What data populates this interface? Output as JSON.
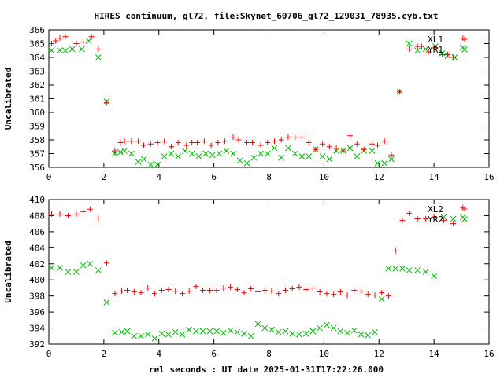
{
  "title": "HIRES continuum, gl72, file:Skynet_60706_gl72_129031_78935.cyb.txt",
  "xlabel": "rel seconds : UT date 2025-01-31T17:22:26.000",
  "colors": {
    "red": "#ff0000",
    "green": "#00bb00",
    "axes": "#000000"
  },
  "chart_data": [
    {
      "type": "scatter",
      "ylabel": "Uncalibrated",
      "xlim": [
        0,
        16
      ],
      "ylim": [
        356,
        366
      ],
      "x_ticks": [
        0,
        2,
        4,
        6,
        8,
        10,
        12,
        14,
        16
      ],
      "y_ticks": [
        356,
        357,
        358,
        359,
        360,
        361,
        362,
        363,
        364,
        365,
        366
      ],
      "x_tick_labels": [
        "0",
        "2",
        "4",
        "6",
        "8",
        "10",
        "12",
        "14",
        "16"
      ],
      "y_tick_labels": [
        "356",
        "357",
        "358",
        "359",
        "360",
        "361",
        "362",
        "363",
        "364",
        "365",
        "366"
      ],
      "grid": false,
      "legend": "top-right",
      "series": [
        {
          "name": "XL1",
          "marker": "plus",
          "color": "#ff0000",
          "x": [
            0.1,
            0.25,
            0.4,
            0.6,
            1.0,
            1.25,
            1.55,
            1.8,
            2.1,
            2.4,
            2.6,
            2.75,
            3.0,
            3.25,
            3.45,
            3.7,
            3.95,
            4.2,
            4.45,
            4.7,
            5.0,
            5.2,
            5.4,
            5.65,
            5.9,
            6.15,
            6.4,
            6.7,
            6.9,
            7.2,
            7.4,
            7.7,
            7.95,
            8.2,
            8.45,
            8.7,
            8.95,
            9.2,
            9.45,
            9.7,
            9.95,
            10.2,
            10.45,
            10.7,
            10.95,
            11.2,
            11.45,
            11.75,
            11.95,
            12.2,
            12.45,
            12.75,
            13.1,
            13.4,
            13.55,
            13.8,
            14.05,
            14.3,
            14.5,
            14.7,
            15.05
          ],
          "y": [
            365.0,
            365.2,
            365.4,
            365.5,
            365.0,
            365.1,
            365.5,
            364.6,
            360.7,
            357.2,
            357.8,
            357.9,
            357.9,
            357.9,
            357.6,
            357.7,
            357.8,
            357.9,
            357.5,
            357.8,
            357.6,
            357.8,
            357.8,
            357.9,
            357.6,
            357.8,
            357.9,
            358.2,
            358.0,
            357.8,
            357.8,
            357.6,
            357.8,
            357.9,
            358.0,
            358.2,
            358.2,
            358.2,
            357.8,
            357.3,
            357.7,
            357.5,
            357.4,
            357.2,
            358.3,
            357.7,
            357.3,
            357.7,
            357.6,
            357.9,
            356.9,
            361.5,
            364.6,
            364.8,
            364.8,
            364.4,
            364.7,
            364.2,
            364.2,
            364.0,
            365.4
          ]
        },
        {
          "name": "YR1",
          "marker": "cross",
          "color": "#00bb00",
          "x": [
            0.1,
            0.4,
            0.6,
            0.85,
            1.2,
            1.45,
            1.8,
            2.1,
            2.4,
            2.6,
            2.75,
            3.0,
            3.25,
            3.45,
            3.7,
            3.95,
            4.2,
            4.45,
            4.7,
            4.95,
            5.2,
            5.45,
            5.7,
            5.95,
            6.2,
            6.45,
            6.7,
            6.95,
            7.2,
            7.45,
            7.7,
            7.95,
            8.2,
            8.45,
            8.7,
            8.95,
            9.2,
            9.45,
            9.7,
            9.95,
            10.2,
            10.45,
            10.7,
            10.95,
            11.2,
            11.45,
            11.75,
            11.95,
            12.2,
            12.45,
            12.75,
            13.1,
            13.4,
            13.7,
            14.05,
            14.3,
            14.5,
            14.75,
            15.05
          ],
          "y": [
            364.5,
            364.5,
            364.5,
            364.6,
            364.6,
            365.2,
            364.0,
            360.8,
            357.0,
            357.1,
            357.2,
            357.0,
            356.4,
            356.6,
            356.2,
            356.2,
            356.8,
            357.0,
            356.8,
            357.2,
            357.0,
            356.8,
            357.0,
            356.9,
            357.0,
            357.2,
            357.0,
            356.5,
            356.3,
            356.7,
            357.0,
            357.0,
            357.4,
            356.7,
            357.4,
            357.0,
            356.8,
            356.8,
            357.3,
            356.8,
            356.6,
            357.2,
            357.2,
            357.4,
            356.8,
            357.2,
            357.2,
            356.3,
            356.3,
            356.6,
            361.5,
            365.0,
            364.5,
            364.6,
            364.8,
            364.3,
            364.1,
            364.0,
            364.7
          ]
        }
      ]
    },
    {
      "type": "scatter",
      "ylabel": "Uncalibrated",
      "xlim": [
        0,
        16
      ],
      "ylim": [
        392,
        410
      ],
      "x_ticks": [
        0,
        2,
        4,
        6,
        8,
        10,
        12,
        14,
        16
      ],
      "y_ticks": [
        392,
        394,
        396,
        398,
        400,
        402,
        404,
        406,
        408,
        410
      ],
      "x_tick_labels": [
        "0",
        "2",
        "4",
        "6",
        "8",
        "10",
        "12",
        "14",
        "16"
      ],
      "y_tick_labels": [
        "392",
        "394",
        "396",
        "398",
        "400",
        "402",
        "404",
        "406",
        "408",
        "410"
      ],
      "grid": false,
      "legend": "top-right",
      "series": [
        {
          "name": "XL2",
          "marker": "plus",
          "color": "#ff0000",
          "x": [
            0.1,
            0.4,
            0.7,
            1.0,
            1.25,
            1.5,
            1.8,
            2.1,
            2.4,
            2.65,
            2.85,
            3.1,
            3.35,
            3.6,
            3.85,
            4.1,
            4.35,
            4.6,
            4.85,
            5.1,
            5.35,
            5.6,
            5.85,
            6.1,
            6.35,
            6.6,
            6.85,
            7.1,
            7.35,
            7.6,
            7.85,
            8.1,
            8.35,
            8.6,
            8.85,
            9.1,
            9.35,
            9.6,
            9.85,
            10.1,
            10.35,
            10.6,
            10.85,
            11.1,
            11.35,
            11.6,
            11.85,
            12.1,
            12.35,
            12.6,
            12.85,
            13.1,
            13.4,
            13.7,
            14.0,
            14.35,
            14.7,
            15.05
          ],
          "y": [
            408.2,
            408.2,
            408.0,
            408.2,
            408.5,
            408.8,
            407.7,
            402.1,
            398.3,
            398.6,
            398.7,
            398.5,
            398.4,
            399.0,
            398.3,
            398.7,
            398.8,
            398.6,
            398.3,
            398.6,
            399.2,
            398.7,
            398.7,
            398.7,
            399.0,
            399.1,
            398.8,
            398.4,
            398.9,
            398.5,
            398.7,
            398.6,
            398.3,
            398.7,
            398.9,
            399.1,
            398.8,
            399.0,
            398.5,
            398.3,
            398.2,
            398.5,
            398.1,
            398.7,
            398.6,
            398.2,
            398.1,
            398.4,
            398.0,
            403.6,
            407.4,
            408.3,
            407.6,
            407.6,
            407.8,
            407.4,
            407.0,
            409.0
          ]
        },
        {
          "name": "YR2",
          "marker": "cross",
          "color": "#00bb00",
          "x": [
            0.1,
            0.4,
            0.7,
            1.0,
            1.25,
            1.5,
            1.8,
            2.1,
            2.4,
            2.65,
            2.85,
            3.1,
            3.35,
            3.6,
            3.85,
            4.1,
            4.35,
            4.6,
            4.85,
            5.1,
            5.35,
            5.6,
            5.85,
            6.1,
            6.35,
            6.6,
            6.85,
            7.1,
            7.35,
            7.6,
            7.85,
            8.1,
            8.35,
            8.6,
            8.85,
            9.1,
            9.35,
            9.6,
            9.85,
            10.1,
            10.35,
            10.6,
            10.85,
            11.1,
            11.35,
            11.6,
            11.85,
            12.1,
            12.35,
            12.6,
            12.85,
            13.1,
            13.4,
            13.7,
            14.0,
            14.35,
            14.7,
            15.05
          ],
          "y": [
            401.5,
            401.5,
            401.0,
            401.0,
            401.8,
            402.0,
            401.2,
            397.2,
            393.4,
            393.5,
            393.6,
            393.0,
            393.0,
            393.2,
            392.7,
            393.3,
            393.2,
            393.5,
            393.2,
            393.8,
            393.6,
            393.6,
            393.6,
            393.6,
            393.4,
            393.7,
            393.5,
            393.3,
            393.0,
            394.5,
            394.0,
            393.8,
            393.5,
            393.6,
            393.3,
            393.2,
            393.3,
            393.6,
            394.0,
            394.4,
            394.0,
            393.6,
            393.4,
            393.7,
            393.2,
            393.1,
            393.5,
            397.6,
            401.4,
            401.4,
            401.4,
            401.2,
            401.2,
            401.0,
            400.5,
            407.8,
            407.6,
            407.8
          ]
        }
      ]
    }
  ]
}
